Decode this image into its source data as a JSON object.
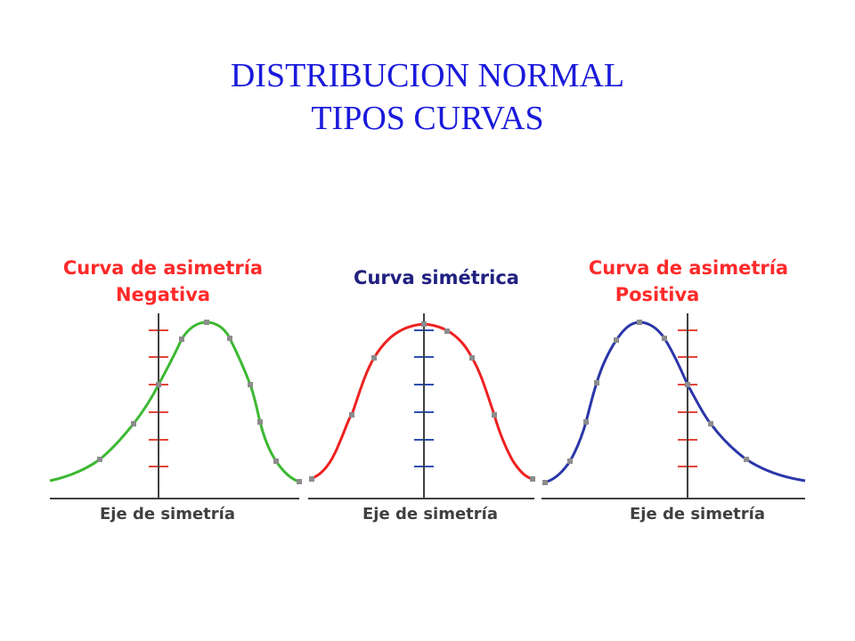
{
  "title": {
    "line1": "DISTRIBUCION NORMAL",
    "line2": "TIPOS CURVAS"
  },
  "panels": [
    {
      "label_line1": "Curva de asimetría",
      "label_line2": "Negativa",
      "label_color": "#ff2a2a",
      "curve_color": "#3cb832",
      "tick_color": "#e0463a",
      "axis_label": "Eje de simetría"
    },
    {
      "label_line1": "Curva simétrica",
      "label_line2": "",
      "label_color": "#202080",
      "curve_color": "#ee2020",
      "tick_color": "#3050b0",
      "axis_label": "Eje de simetría"
    },
    {
      "label_line1": "Curva de asimetría",
      "label_line2": "Positiva",
      "label_color": "#ff2a2a",
      "curve_color": "#2a36a8",
      "tick_color": "#e0463a",
      "axis_label": "Eje de simetría"
    }
  ],
  "colors": {
    "title": "#1a1adb",
    "axis": "#404040",
    "marker": "#8c8c8c",
    "axis_label": "#404040"
  }
}
